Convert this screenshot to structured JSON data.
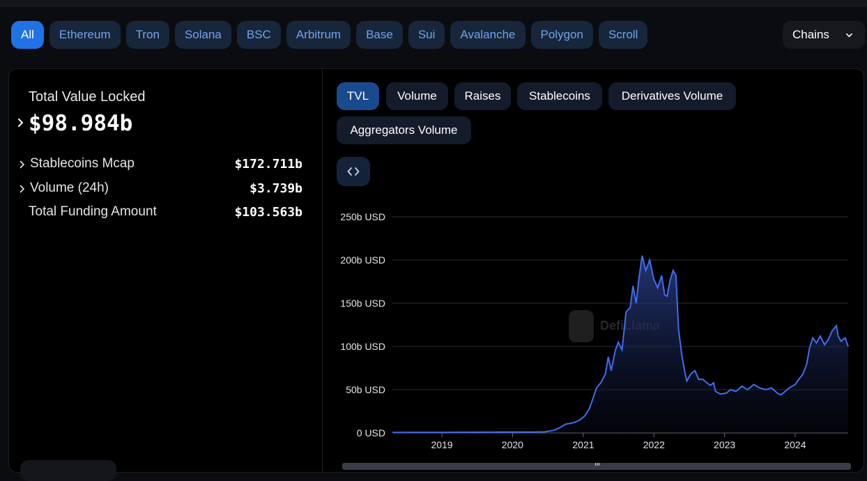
{
  "chains": {
    "items": [
      "All",
      "Ethereum",
      "Tron",
      "Solana",
      "BSC",
      "Arbitrum",
      "Base",
      "Sui",
      "Avalanche",
      "Polygon",
      "Scroll"
    ],
    "active": "All",
    "dropdown_label": "Chains",
    "dropdown_icon": "chevron-down-icon"
  },
  "summary": {
    "tvl_label": "Total Value Locked",
    "tvl_value": "$98.984b",
    "stats": [
      {
        "label": "Stablecoins Mcap",
        "value": "$172.711b",
        "expandable": true
      },
      {
        "label": "Volume (24h)",
        "value": "$3.739b",
        "expandable": true
      },
      {
        "label": "Total Funding Amount",
        "value": "$103.563b",
        "expandable": false
      }
    ]
  },
  "chart_tabs": {
    "items": [
      "TVL",
      "Volume",
      "Raises",
      "Stablecoins",
      "Derivatives Volume",
      "Aggregators Volume"
    ],
    "active": "TVL",
    "embed_icon": "code-brackets-icon"
  },
  "watermark": "DefiLlama",
  "colors": {
    "accent": "#2172e5",
    "line": "#3f6ef0",
    "chip_bg": "#17263a",
    "chip_text": "#6fa4ef"
  },
  "chart_data": {
    "type": "area",
    "title": "",
    "xlabel": "",
    "ylabel": "",
    "y_tick_labels": [
      "0 USD",
      "50b USD",
      "100b USD",
      "150b USD",
      "200b USD",
      "250b USD"
    ],
    "y_ticks": [
      0,
      50,
      100,
      150,
      200,
      250
    ],
    "x_tick_labels": [
      "2019",
      "2020",
      "2021",
      "2022",
      "2023",
      "2024"
    ],
    "ylim": [
      0,
      250
    ],
    "xlim": [
      "2018-04-20",
      "2024-10-01"
    ],
    "grid": true,
    "series": [
      {
        "x": [
          "2018-04-20",
          "2018-07-01",
          "2019-01-01",
          "2019-07-01",
          "2020-01-01",
          "2020-04-01",
          "2020-06-15",
          "2020-08-01",
          "2020-09-01",
          "2020-10-01",
          "2020-11-15",
          "2020-12-15",
          "2021-01-10",
          "2021-02-01",
          "2021-02-20",
          "2021-03-10",
          "2021-04-01",
          "2021-04-25",
          "2021-05-10",
          "2021-05-25",
          "2021-06-15",
          "2021-07-01",
          "2021-07-20",
          "2021-08-10",
          "2021-08-31",
          "2021-09-15",
          "2021-10-01",
          "2021-10-15",
          "2021-11-01",
          "2021-11-20",
          "2021-12-10",
          "2021-12-31",
          "2022-01-20",
          "2022-02-10",
          "2022-02-25",
          "2022-03-10",
          "2022-03-25",
          "2022-04-10",
          "2022-04-25",
          "2022-05-08",
          "2022-05-15",
          "2022-05-25",
          "2022-06-10",
          "2022-06-20",
          "2022-07-10",
          "2022-08-01",
          "2022-08-20",
          "2022-09-10",
          "2022-10-01",
          "2022-10-20",
          "2022-11-05",
          "2022-11-15",
          "2022-12-10",
          "2023-01-10",
          "2023-02-01",
          "2023-03-01",
          "2023-04-01",
          "2023-05-01",
          "2023-06-01",
          "2023-07-01",
          "2023-08-01",
          "2023-09-01",
          "2023-10-01",
          "2023-10-20",
          "2023-11-10",
          "2023-12-01",
          "2024-01-01",
          "2024-01-20",
          "2024-02-10",
          "2024-03-01",
          "2024-03-15",
          "2024-04-01",
          "2024-04-20",
          "2024-05-10",
          "2024-06-01",
          "2024-06-20",
          "2024-07-10",
          "2024-08-01",
          "2024-08-10",
          "2024-08-25",
          "2024-09-15",
          "2024-10-01"
        ],
        "values": [
          0.5,
          0.6,
          0.6,
          0.8,
          1.0,
          0.9,
          1.2,
          3,
          6,
          10,
          12,
          15,
          20,
          28,
          40,
          52,
          58,
          68,
          88,
          72,
          95,
          105,
          96,
          140,
          145,
          170,
          150,
          178,
          205,
          188,
          200,
          178,
          168,
          182,
          160,
          158,
          176,
          188,
          182,
          120,
          108,
          90,
          70,
          60,
          68,
          72,
          62,
          62,
          58,
          55,
          58,
          48,
          45,
          46,
          50,
          48,
          54,
          50,
          56,
          52,
          50,
          52,
          46,
          44,
          48,
          52,
          56,
          62,
          68,
          80,
          98,
          110,
          104,
          112,
          102,
          108,
          118,
          124,
          112,
          106,
          110,
          100
        ]
      }
    ]
  }
}
